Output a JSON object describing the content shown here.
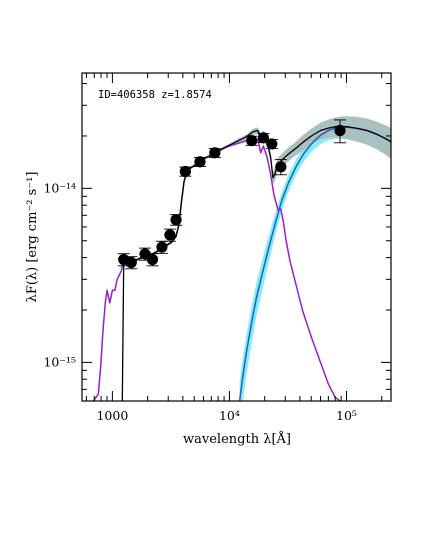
{
  "chart_data": {
    "type": "line",
    "annotation": "ID=406358 z=1.8574",
    "xlabel": "wavelength λ[Å]",
    "ylabel": "λF(λ) [erg cm⁻² s⁻¹]",
    "xscale": "log",
    "yscale": "log",
    "xlim": [
      550,
      240000
    ],
    "ylim": [
      6e-16,
      4.6e-14
    ],
    "x_ticks": [
      {
        "value": 1000,
        "label": "1000"
      },
      {
        "value": 10000,
        "label": "10⁴"
      },
      {
        "value": 100000,
        "label": "10⁵"
      }
    ],
    "y_ticks": [
      {
        "value": 1e-15,
        "label": "10⁻¹⁵"
      },
      {
        "value": 1e-14,
        "label": "10⁻¹⁴"
      }
    ],
    "grid": false,
    "legend": "none",
    "photometry": {
      "x": [
        1250,
        1450,
        1900,
        2200,
        2650,
        3100,
        3500,
        4200,
        5600,
        7500,
        15500,
        19500,
        23000,
        27500,
        88000
      ],
      "y": [
        3.9e-15,
        3.75e-15,
        4.2e-15,
        3.9e-15,
        4.6e-15,
        5.4e-15,
        6.6e-15,
        1.25e-14,
        1.42e-14,
        1.6e-14,
        1.88e-14,
        1.95e-14,
        1.8e-14,
        1.33e-14,
        2.15e-14
      ],
      "yerr_frac": [
        0.08,
        0.08,
        0.08,
        0.08,
        0.08,
        0.08,
        0.07,
        0.06,
        0.06,
        0.06,
        0.06,
        0.06,
        0.06,
        0.1,
        0.15
      ],
      "color": "#000000"
    },
    "series": [
      {
        "role": "stellar",
        "color": "#9a1fc4",
        "x": [
          690,
          760,
          800,
          830,
          870,
          900,
          950,
          1000,
          1050,
          1100,
          1150,
          1180,
          1200,
          1215,
          1250,
          1350,
          1500,
          1700,
          2000,
          2300,
          2600,
          2900,
          3200,
          3500,
          3700,
          3900,
          4100,
          4400,
          5000,
          6000,
          7000,
          8000,
          9000,
          10000,
          12000,
          14000,
          16000,
          17500,
          18500,
          19500,
          21000,
          22500,
          24000,
          26000,
          27500,
          29000,
          30500,
          33000,
          37000,
          42000,
          50000,
          60000,
          70000,
          80000,
          88000
        ],
        "y": [
          6e-16,
          6.6e-16,
          1e-15,
          1.5e-15,
          2.2e-15,
          2.6e-15,
          2.2e-15,
          2.6e-15,
          2.6e-15,
          3e-15,
          3.2e-15,
          3.3e-15,
          3.4e-15,
          3.6e-15,
          3.7e-15,
          3.7e-15,
          3.8e-15,
          3.95e-15,
          4.1e-15,
          4.25e-15,
          4.5e-15,
          4.7e-15,
          4.9e-15,
          5.3e-15,
          6.2e-15,
          8.5e-15,
          1.1e-14,
          1.28e-14,
          1.35e-14,
          1.48e-14,
          1.55e-14,
          1.63e-14,
          1.7e-14,
          1.75e-14,
          1.82e-14,
          1.88e-14,
          1.95e-14,
          1.9e-14,
          1.6e-14,
          1.75e-14,
          1.5e-14,
          1.2e-14,
          9.2e-15,
          7.5e-15,
          7.6e-15,
          6.3e-15,
          5e-15,
          3.8e-15,
          2.8e-15,
          2e-15,
          1.4e-15,
          1e-15,
          7.5e-16,
          6.3e-16,
          6e-16
        ]
      },
      {
        "role": "dust",
        "color": "#1e5fc8",
        "band_color": "#84ecf4",
        "x": [
          12200,
          13000,
          14000,
          15500,
          17000,
          19000,
          21000,
          23000,
          25000,
          28000,
          32000,
          37000,
          43000,
          50000,
          60000,
          70000,
          80000,
          90000,
          100000,
          120000,
          150000,
          180000,
          210000,
          240000
        ],
        "y": [
          6e-16,
          8.3e-16,
          1.15e-15,
          1.7e-15,
          2.35e-15,
          3.2e-15,
          4.2e-15,
          5.3e-15,
          6.5e-15,
          8.5e-15,
          1.08e-14,
          1.33e-14,
          1.58e-14,
          1.8e-14,
          2.02e-14,
          2.15e-14,
          2.22e-14,
          2.25e-14,
          2.25e-14,
          2.22e-14,
          2.15e-14,
          2.05e-14,
          1.95e-14,
          1.85e-14
        ],
        "band_frac": [
          0.3,
          0.28,
          0.26,
          0.24,
          0.22,
          0.2,
          0.18,
          0.16,
          0.14,
          0.12,
          0.11,
          0.1,
          0.1,
          0.1,
          0.11,
          0.12,
          0.13,
          0.14,
          0.15,
          0.16,
          0.17,
          0.18,
          0.19,
          0.2
        ]
      },
      {
        "role": "total",
        "color": "#000000",
        "band_color": "#a9bfc0",
        "x": [
          1215,
          1250,
          1350,
          1500,
          1700,
          2000,
          2300,
          2600,
          2900,
          3200,
          3500,
          3700,
          3900,
          4100,
          4400,
          5000,
          6000,
          7000,
          8000,
          9000,
          10000,
          12000,
          14000,
          16000,
          17500,
          18500,
          19500,
          21000,
          22500,
          23500,
          24500,
          26000,
          28000,
          30000,
          33000,
          37000,
          43000,
          50000,
          60000,
          70000,
          80000,
          90000,
          100000,
          120000,
          150000,
          180000,
          210000,
          240000
        ],
        "y": [
          6e-16,
          3.7e-15,
          3.7e-15,
          3.8e-15,
          3.95e-15,
          4.1e-15,
          4.25e-15,
          4.5e-15,
          4.7e-15,
          4.9e-15,
          5.3e-15,
          6.2e-15,
          8.5e-15,
          1.1e-14,
          1.28e-14,
          1.35e-14,
          1.48e-14,
          1.55e-14,
          1.63e-14,
          1.71e-14,
          1.77e-14,
          1.88e-14,
          1.98e-14,
          2.12e-14,
          2.15e-14,
          1.95e-14,
          2.05e-14,
          1.85e-14,
          1.5e-14,
          1.15e-14,
          1.22e-14,
          1.38e-14,
          1.45e-14,
          1.52e-14,
          1.6e-14,
          1.7e-14,
          1.85e-14,
          2e-14,
          2.15e-14,
          2.22e-14,
          2.26e-14,
          2.27e-14,
          2.26e-14,
          2.22e-14,
          2.15e-14,
          2.05e-14,
          1.95e-14,
          1.85e-14
        ],
        "band_frac": [
          0.02,
          0.02,
          0.02,
          0.02,
          0.02,
          0.02,
          0.02,
          0.02,
          0.02,
          0.02,
          0.02,
          0.02,
          0.02,
          0.02,
          0.02,
          0.02,
          0.02,
          0.02,
          0.02,
          0.02,
          0.02,
          0.03,
          0.03,
          0.04,
          0.04,
          0.05,
          0.05,
          0.06,
          0.07,
          0.08,
          0.09,
          0.09,
          0.09,
          0.09,
          0.09,
          0.09,
          0.1,
          0.1,
          0.11,
          0.12,
          0.13,
          0.14,
          0.15,
          0.16,
          0.17,
          0.18,
          0.19,
          0.2
        ]
      }
    ]
  }
}
